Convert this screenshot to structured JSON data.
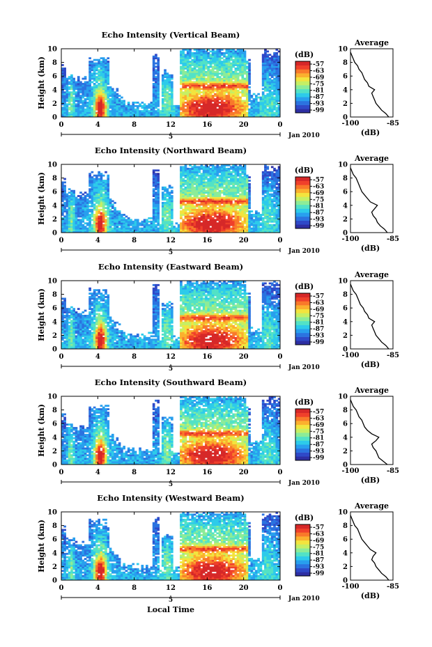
{
  "figure": {
    "height_label": "Height (km)",
    "xlabel": "Local Time",
    "date_label": "Jan 2010",
    "day_marker": "5",
    "unit_label": "(dB)",
    "avg_title": "Average",
    "avg_xlabel": "(dB)"
  },
  "colorbar": {
    "ticks": [
      "-57",
      "-63",
      "-69",
      "-75",
      "-81",
      "-87",
      "-93",
      "-99"
    ],
    "colors": [
      "#2e2fa3",
      "#2f49c8",
      "#2b73e0",
      "#289fee",
      "#2dcbea",
      "#52e2c6",
      "#8cec98",
      "#c6ef64",
      "#f3e43e",
      "#fbb02e",
      "#f9792a",
      "#f0402b",
      "#d62828"
    ]
  },
  "chart_data": [
    {
      "type": "heatmap",
      "title": "Echo Intensity (Vertical Beam)",
      "ylabel": "Height (km)",
      "xlim": [
        0,
        24
      ],
      "ylim": [
        0,
        10
      ],
      "xticks": [
        "0",
        "4",
        "8",
        "12",
        "16",
        "20",
        "0"
      ],
      "yticks": [
        "0",
        "2",
        "4",
        "6",
        "8",
        "10"
      ],
      "colorbar_label": "(dB)",
      "colorbar_ticks": [
        -57,
        -63,
        -69,
        -75,
        -81,
        -87,
        -93,
        -99
      ],
      "average_profile": {
        "title": "Average",
        "xlabel": "(dB)",
        "xlim": [
          -100,
          -85
        ],
        "xticks": [
          "-100",
          "-85"
        ],
        "ylim": [
          0,
          10
        ],
        "height_km": [
          0,
          0.5,
          1,
          1.5,
          2,
          2.5,
          3,
          3.5,
          4,
          4.5,
          5,
          5.5,
          6,
          6.5,
          7,
          7.5,
          8,
          8.5,
          9,
          9.5
        ],
        "db": [
          -86.5,
          -87.5,
          -89.0,
          -90.0,
          -91.0,
          -91.5,
          -92.0,
          -92.5,
          -91.5,
          -93.5,
          -94.0,
          -95.0,
          -95.5,
          -96.0,
          -97.0,
          -97.5,
          -98.5,
          -99.0,
          -99.5,
          -100.0
        ]
      }
    },
    {
      "type": "heatmap",
      "title": "Echo Intensity (Northward Beam)",
      "ylabel": "Height (km)",
      "xlim": [
        0,
        24
      ],
      "ylim": [
        0,
        10
      ],
      "xticks": [
        "0",
        "4",
        "8",
        "12",
        "16",
        "20",
        "0"
      ],
      "yticks": [
        "0",
        "2",
        "4",
        "6",
        "8",
        "10"
      ],
      "colorbar_label": "(dB)",
      "colorbar_ticks": [
        -57,
        -63,
        -69,
        -75,
        -81,
        -87,
        -93,
        -99
      ],
      "average_profile": {
        "title": "Average",
        "xlabel": "(dB)",
        "xlim": [
          -100,
          -85
        ],
        "xticks": [
          "-100",
          "-85"
        ],
        "ylim": [
          0,
          10
        ],
        "height_km": [
          0,
          0.5,
          1,
          1.5,
          2,
          2.5,
          3,
          3.5,
          4,
          4.5,
          5,
          5.5,
          6,
          6.5,
          7,
          7.5,
          8,
          8.5,
          9,
          9.5
        ],
        "db": [
          -87.0,
          -88.0,
          -89.5,
          -90.5,
          -91.0,
          -92.0,
          -92.5,
          -91.5,
          -90.5,
          -93.0,
          -94.0,
          -95.0,
          -96.0,
          -96.5,
          -97.0,
          -97.5,
          -98.0,
          -99.0,
          -99.5,
          -100.0
        ]
      }
    },
    {
      "type": "heatmap",
      "title": "Echo Intensity (Eastward Beam)",
      "ylabel": "Height (km)",
      "xlim": [
        0,
        24
      ],
      "ylim": [
        0,
        10
      ],
      "xticks": [
        "0",
        "4",
        "8",
        "12",
        "16",
        "20",
        "0"
      ],
      "yticks": [
        "0",
        "2",
        "4",
        "6",
        "8",
        "10"
      ],
      "colorbar_label": "(dB)",
      "colorbar_ticks": [
        -57,
        -63,
        -69,
        -75,
        -81,
        -87,
        -93,
        -99
      ],
      "average_profile": {
        "title": "Average",
        "xlabel": "(dB)",
        "xlim": [
          -100,
          -85
        ],
        "xticks": [
          "-100",
          "-85"
        ],
        "ylim": [
          0,
          10
        ],
        "height_km": [
          0,
          0.5,
          1,
          1.5,
          2,
          2.5,
          3,
          3.5,
          4,
          4.5,
          5,
          5.5,
          6,
          6.5,
          7,
          7.5,
          8,
          8.5,
          9,
          9.5
        ],
        "db": [
          -86.5,
          -87.5,
          -89.0,
          -90.0,
          -91.0,
          -91.5,
          -92.0,
          -92.5,
          -91.5,
          -93.5,
          -94.0,
          -95.0,
          -95.5,
          -96.5,
          -97.0,
          -97.5,
          -98.0,
          -99.0,
          -99.5,
          -100.0
        ]
      }
    },
    {
      "type": "heatmap",
      "title": "Echo Intensity (Southward Beam)",
      "ylabel": "Height (km)",
      "xlim": [
        0,
        24
      ],
      "ylim": [
        0,
        10
      ],
      "xticks": [
        "0",
        "4",
        "8",
        "12",
        "16",
        "20",
        "0"
      ],
      "yticks": [
        "0",
        "2",
        "4",
        "6",
        "8",
        "10"
      ],
      "colorbar_label": "(dB)",
      "colorbar_ticks": [
        -57,
        -63,
        -69,
        -75,
        -81,
        -87,
        -93,
        -99
      ],
      "average_profile": {
        "title": "Average",
        "xlabel": "(dB)",
        "xlim": [
          -100,
          -85
        ],
        "xticks": [
          "-100",
          "-85"
        ],
        "ylim": [
          0,
          10
        ],
        "height_km": [
          0,
          0.5,
          1,
          1.5,
          2,
          2.5,
          3,
          3.5,
          4,
          4.5,
          5,
          5.5,
          6,
          6.5,
          7,
          7.5,
          8,
          8.5,
          9,
          9.5
        ],
        "db": [
          -87.0,
          -88.5,
          -90.0,
          -90.5,
          -91.0,
          -92.0,
          -92.5,
          -91.0,
          -90.0,
          -92.5,
          -94.0,
          -95.0,
          -95.5,
          -96.0,
          -97.0,
          -97.5,
          -98.0,
          -99.0,
          -99.5,
          -100.0
        ]
      }
    },
    {
      "type": "heatmap",
      "title": "Echo Intensity (Westward Beam)",
      "ylabel": "Height (km)",
      "xlim": [
        0,
        24
      ],
      "ylim": [
        0,
        10
      ],
      "xticks": [
        "0",
        "4",
        "8",
        "12",
        "16",
        "20",
        "0"
      ],
      "yticks": [
        "0",
        "2",
        "4",
        "6",
        "8",
        "10"
      ],
      "colorbar_label": "(dB)",
      "colorbar_ticks": [
        -57,
        -63,
        -69,
        -75,
        -81,
        -87,
        -93,
        -99
      ],
      "average_profile": {
        "title": "Average",
        "xlabel": "(dB)",
        "xlim": [
          -100,
          -85
        ],
        "xticks": [
          "-100",
          "-85"
        ],
        "ylim": [
          0,
          10
        ],
        "height_km": [
          0,
          0.5,
          1,
          1.5,
          2,
          2.5,
          3,
          3.5,
          4,
          4.5,
          5,
          5.5,
          6,
          6.5,
          7,
          7.5,
          8,
          8.5,
          9,
          9.5
        ],
        "db": [
          -86.5,
          -87.5,
          -89.0,
          -90.0,
          -91.0,
          -91.5,
          -92.5,
          -92.0,
          -91.0,
          -93.0,
          -94.0,
          -95.0,
          -96.0,
          -96.5,
          -97.0,
          -97.5,
          -98.5,
          -99.0,
          -99.5,
          -100.0
        ]
      }
    }
  ]
}
